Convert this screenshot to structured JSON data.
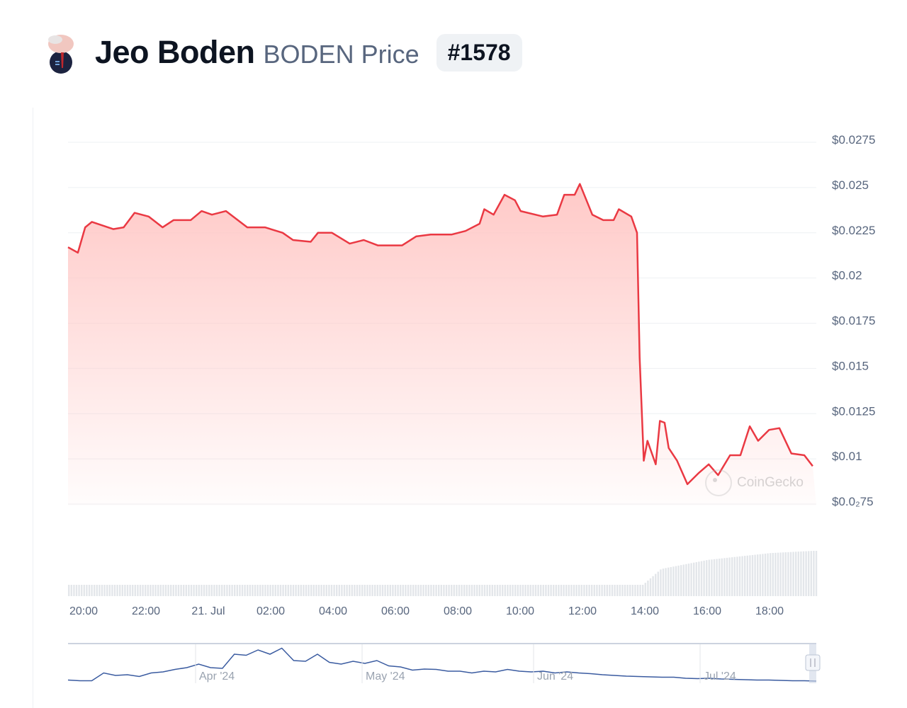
{
  "header": {
    "name": "Jeo Boden",
    "symbol_label": "BODEN Price",
    "rank": "#1578",
    "avatar_icon": "jeo-boden-logo"
  },
  "watermark": "CoinGecko",
  "colors": {
    "line": "#ea3943",
    "fill": "#ffc9c7",
    "volume": "#e3e6ea",
    "navigator_line": "#3a5ba0"
  },
  "chart_data": {
    "type": "area",
    "title": "",
    "ylim": [
      0.0075,
      0.0275
    ],
    "y_ticks": [
      {
        "v": 0.0275,
        "label": "$0.0275"
      },
      {
        "v": 0.025,
        "label": "$0.025"
      },
      {
        "v": 0.0225,
        "label": "$0.0225"
      },
      {
        "v": 0.02,
        "label": "$0.02"
      },
      {
        "v": 0.0175,
        "label": "$0.0175"
      },
      {
        "v": 0.015,
        "label": "$0.015"
      },
      {
        "v": 0.0125,
        "label": "$0.0125"
      },
      {
        "v": 0.01,
        "label": "$0.01"
      },
      {
        "v": 0.0075,
        "label": "$0.0₂75"
      }
    ],
    "x_ticks": [
      {
        "t": "2024-07-20T20:00",
        "label": "20:00"
      },
      {
        "t": "2024-07-20T22:00",
        "label": "22:00"
      },
      {
        "t": "2024-07-21T00:00",
        "label": "21. Jul"
      },
      {
        "t": "2024-07-21T02:00",
        "label": "02:00"
      },
      {
        "t": "2024-07-21T04:00",
        "label": "04:00"
      },
      {
        "t": "2024-07-21T06:00",
        "label": "06:00"
      },
      {
        "t": "2024-07-21T08:00",
        "label": "08:00"
      },
      {
        "t": "2024-07-21T10:00",
        "label": "10:00"
      },
      {
        "t": "2024-07-21T12:00",
        "label": "12:00"
      },
      {
        "t": "2024-07-21T14:00",
        "label": "14:00"
      },
      {
        "t": "2024-07-21T16:00",
        "label": "16:00"
      },
      {
        "t": "2024-07-21T18:00",
        "label": "18:00"
      }
    ],
    "grid": true,
    "series": [
      {
        "points": [
          [
            "2024-07-20T19:30",
            0.0217
          ],
          [
            "2024-07-20T19:49",
            0.0214
          ],
          [
            "2024-07-20T20:03",
            0.0228
          ],
          [
            "2024-07-20T20:16",
            0.0231
          ],
          [
            "2024-07-20T20:57",
            0.0227
          ],
          [
            "2024-07-20T21:17",
            0.0228
          ],
          [
            "2024-07-20T21:38",
            0.0236
          ],
          [
            "2024-07-20T22:05",
            0.0234
          ],
          [
            "2024-07-20T22:32",
            0.0228
          ],
          [
            "2024-07-20T22:53",
            0.0232
          ],
          [
            "2024-07-20T23:26",
            0.0232
          ],
          [
            "2024-07-20T23:47",
            0.0237
          ],
          [
            "2024-07-21T00:07",
            0.0235
          ],
          [
            "2024-07-21T00:34",
            0.0237
          ],
          [
            "2024-07-21T01:15",
            0.0228
          ],
          [
            "2024-07-21T01:49",
            0.0228
          ],
          [
            "2024-07-21T02:23",
            0.0225
          ],
          [
            "2024-07-21T02:43",
            0.0221
          ],
          [
            "2024-07-21T03:17",
            0.022
          ],
          [
            "2024-07-21T03:31",
            0.0225
          ],
          [
            "2024-07-21T03:58",
            0.0225
          ],
          [
            "2024-07-21T04:32",
            0.0219
          ],
          [
            "2024-07-21T04:59",
            0.0221
          ],
          [
            "2024-07-21T05:26",
            0.0218
          ],
          [
            "2024-07-21T06:13",
            0.0218
          ],
          [
            "2024-07-21T06:40",
            0.0223
          ],
          [
            "2024-07-21T07:08",
            0.0224
          ],
          [
            "2024-07-21T07:48",
            0.0224
          ],
          [
            "2024-07-21T08:15",
            0.0226
          ],
          [
            "2024-07-21T08:42",
            0.023
          ],
          [
            "2024-07-21T08:51",
            0.0238
          ],
          [
            "2024-07-21T09:09",
            0.0235
          ],
          [
            "2024-07-21T09:30",
            0.0246
          ],
          [
            "2024-07-21T09:50",
            0.0243
          ],
          [
            "2024-07-21T10:01",
            0.0237
          ],
          [
            "2024-07-21T10:44",
            0.0234
          ],
          [
            "2024-07-21T11:11",
            0.0235
          ],
          [
            "2024-07-21T11:25",
            0.0246
          ],
          [
            "2024-07-21T11:45",
            0.0246
          ],
          [
            "2024-07-21T11:55",
            0.0252
          ],
          [
            "2024-07-21T12:19",
            0.0235
          ],
          [
            "2024-07-21T12:40",
            0.0232
          ],
          [
            "2024-07-21T13:00",
            0.0232
          ],
          [
            "2024-07-21T13:10",
            0.0238
          ],
          [
            "2024-07-21T13:34",
            0.0234
          ],
          [
            "2024-07-21T13:45",
            0.0225
          ],
          [
            "2024-07-21T13:50",
            0.0156
          ],
          [
            "2024-07-21T13:58",
            0.0099
          ],
          [
            "2024-07-21T14:05",
            0.011
          ],
          [
            "2024-07-21T14:21",
            0.0097
          ],
          [
            "2024-07-21T14:29",
            0.0121
          ],
          [
            "2024-07-21T14:38",
            0.012
          ],
          [
            "2024-07-21T14:46",
            0.0106
          ],
          [
            "2024-07-21T15:02",
            0.0099
          ],
          [
            "2024-07-21T15:22",
            0.0086
          ],
          [
            "2024-07-21T15:43",
            0.0092
          ],
          [
            "2024-07-21T16:03",
            0.0097
          ],
          [
            "2024-07-21T16:21",
            0.0091
          ],
          [
            "2024-07-21T16:44",
            0.0102
          ],
          [
            "2024-07-21T17:04",
            0.0102
          ],
          [
            "2024-07-21T17:22",
            0.0118
          ],
          [
            "2024-07-21T17:38",
            0.011
          ],
          [
            "2024-07-21T17:59",
            0.0116
          ],
          [
            "2024-07-21T18:19",
            0.0117
          ],
          [
            "2024-07-21T18:42",
            0.0103
          ],
          [
            "2024-07-21T19:07",
            0.0102
          ],
          [
            "2024-07-21T19:23",
            0.0096
          ]
        ]
      }
    ],
    "volume_relative": [
      [
        "2024-07-20T19:30",
        0.25
      ],
      [
        "2024-07-21T13:55",
        0.25
      ],
      [
        "2024-07-21T14:30",
        0.6
      ],
      [
        "2024-07-21T16:00",
        0.8
      ],
      [
        "2024-07-21T18:00",
        0.95
      ],
      [
        "2024-07-21T19:23",
        1.0
      ]
    ],
    "navigator": {
      "labels": [
        "Apr '24",
        "May '24",
        "Jun '24",
        "Jul '24"
      ],
      "values": [
        0.05,
        0.03,
        0.03,
        0.25,
        0.18,
        0.2,
        0.15,
        0.25,
        0.28,
        0.35,
        0.4,
        0.5,
        0.4,
        0.38,
        0.78,
        0.75,
        0.9,
        0.78,
        0.95,
        0.6,
        0.58,
        0.78,
        0.55,
        0.5,
        0.58,
        0.52,
        0.6,
        0.45,
        0.42,
        0.33,
        0.36,
        0.35,
        0.3,
        0.3,
        0.25,
        0.3,
        0.28,
        0.35,
        0.3,
        0.28,
        0.3,
        0.25,
        0.28,
        0.25,
        0.23,
        0.2,
        0.18,
        0.16,
        0.15,
        0.14,
        0.13,
        0.13,
        0.1,
        0.09,
        0.1,
        0.08,
        0.07,
        0.06,
        0.05,
        0.05,
        0.04,
        0.03,
        0.03,
        0.02
      ]
    }
  }
}
